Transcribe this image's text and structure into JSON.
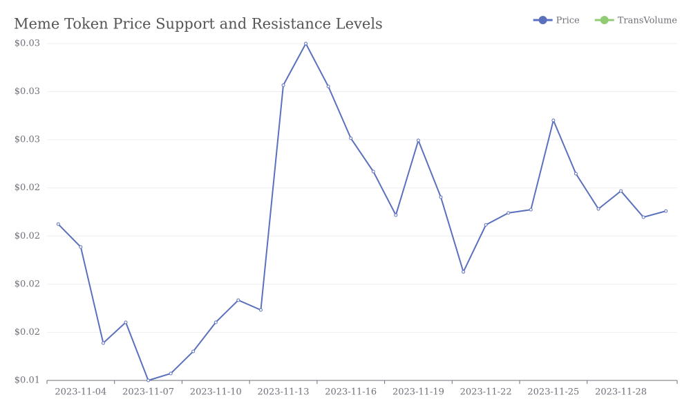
{
  "chart_data": {
    "type": "line",
    "title": "Meme Token Price Support and Resistance Levels",
    "categories": [
      null,
      "2023-11-04",
      null,
      null,
      "2023-11-07",
      null,
      null,
      "2023-11-10",
      null,
      null,
      "2023-11-13",
      null,
      null,
      "2023-11-16",
      null,
      null,
      "2023-11-19",
      null,
      null,
      "2023-11-22",
      null,
      null,
      "2023-11-25",
      null,
      null,
      "2023-11-28",
      null,
      null
    ],
    "series": [
      {
        "name": "Price",
        "color": "#5b70bd",
        "values": [
          0.02062,
          0.01943,
          0.01444,
          0.01552,
          0.0125,
          0.01286,
          0.01401,
          0.01552,
          0.01667,
          0.01616,
          0.02784,
          0.03,
          0.02777,
          0.02508,
          0.02335,
          0.02109,
          0.02497,
          0.02202,
          0.01814,
          0.02058,
          0.0212,
          0.02137,
          0.02601,
          0.02324,
          0.02141,
          0.02234,
          0.02098,
          0.0213
        ]
      },
      {
        "name": "TransVolume",
        "color": "#91cc75"
      }
    ],
    "ylim": [
      0.0125,
      0.03
    ],
    "yticks": [
      {
        "value": 0.0125,
        "label": "$0.01"
      },
      {
        "value": 0.015,
        "label": "$0.02"
      },
      {
        "value": 0.0175,
        "label": "$0.02"
      },
      {
        "value": 0.02,
        "label": "$0.02"
      },
      {
        "value": 0.0225,
        "label": "$0.02"
      },
      {
        "value": 0.025,
        "label": "$0.03"
      },
      {
        "value": 0.0275,
        "label": "$0.03"
      },
      {
        "value": 0.03,
        "label": "$0.03"
      }
    ],
    "grid": true,
    "legend": "top-right"
  }
}
